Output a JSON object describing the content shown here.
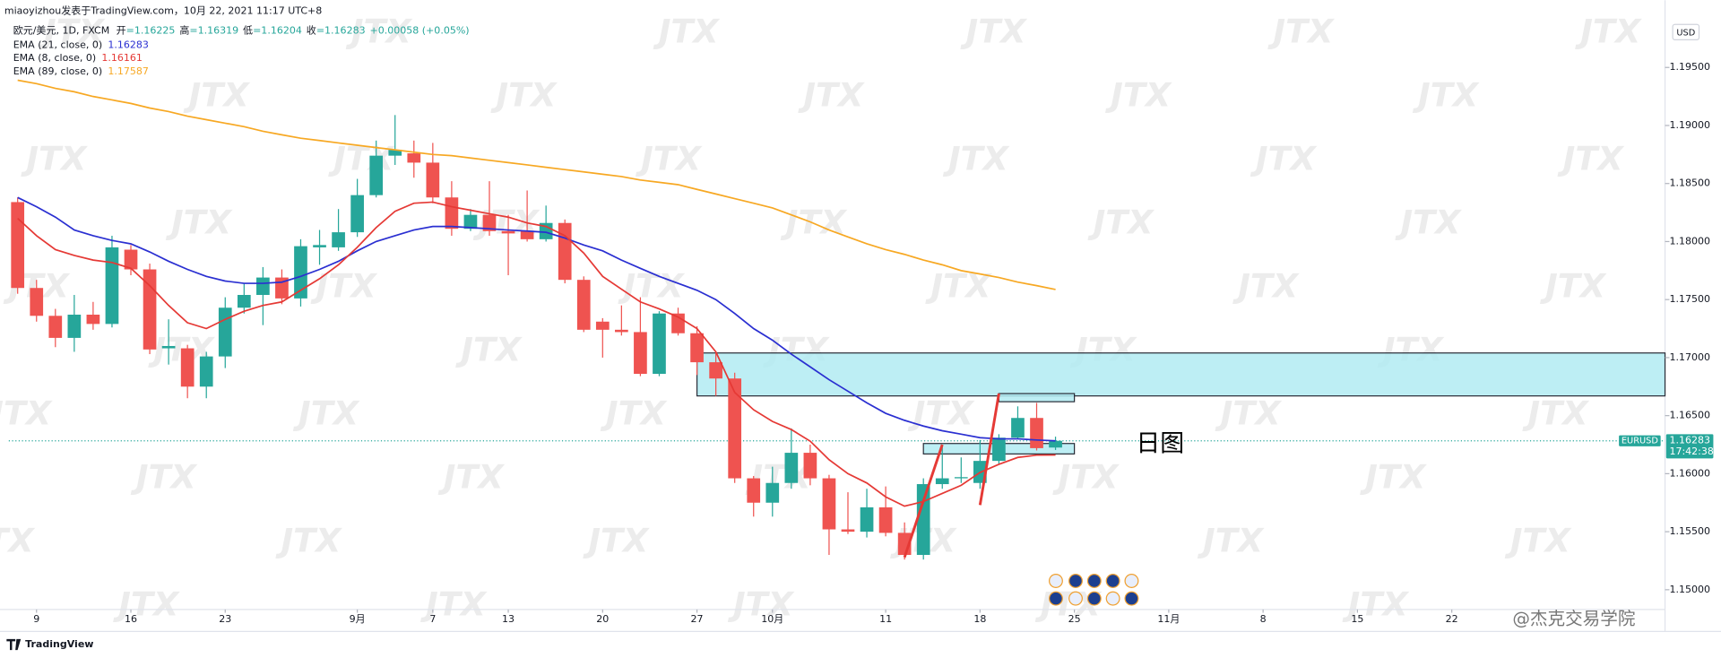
{
  "chart_data": {
    "type": "candlestick",
    "published": "miaoyizhou发表于TradingView.com，10月 22, 2021 11:17 UTC+8",
    "symbol": "欧元/美元, 1D, FXCM",
    "ohlc_header": [
      {
        "label": "开",
        "value": "=1.16225"
      },
      {
        "label": "高",
        "value": "=1.16319"
      },
      {
        "label": "低",
        "value": "=1.16204"
      },
      {
        "label": "收",
        "value": "=1.16283"
      }
    ],
    "change": "+0.00058 (+0.05%)",
    "currency": "USD",
    "ticker": "EURUSD",
    "last_price": 1.16283,
    "last_price_label": "1.16283",
    "countdown": "17:42:38",
    "annotation": "日图",
    "watermark": "JTX",
    "footer_brand": "TradingView",
    "footer_watermark": "@杰克交易学院",
    "up_color": "#26a69a",
    "down_color": "#ef5350",
    "x": [
      0,
      1,
      2,
      3,
      4,
      5,
      6,
      7,
      8,
      9,
      10,
      11,
      12,
      13,
      14,
      15,
      16,
      17,
      18,
      19,
      20,
      21,
      22,
      23,
      24,
      25,
      26,
      27,
      28,
      29,
      30,
      31,
      32,
      33,
      34,
      35,
      36,
      37,
      38,
      39,
      40,
      41,
      42,
      43,
      44,
      45,
      46,
      47,
      48,
      49,
      50,
      51,
      52,
      53,
      54,
      55
    ],
    "open": [
      1.1834,
      1.176,
      1.1736,
      1.1717,
      1.1737,
      1.1729,
      1.1793,
      1.1776,
      1.1708,
      1.1708,
      1.1675,
      1.1701,
      1.1743,
      1.1754,
      1.1769,
      1.1751,
      1.1795,
      1.1795,
      1.1808,
      1.184,
      1.1874,
      1.1876,
      1.1868,
      1.1838,
      1.1811,
      1.1823,
      1.1809,
      1.1809,
      1.1802,
      1.1816,
      1.1767,
      1.1731,
      1.1724,
      1.1722,
      1.1686,
      1.1738,
      1.1721,
      1.1696,
      1.1682,
      1.1596,
      1.1575,
      1.1592,
      1.1618,
      1.1596,
      1.1552,
      1.155,
      1.1571,
      1.1549,
      1.153,
      1.1591,
      1.1596,
      1.1592,
      1.1611,
      1.1631,
      1.1648,
      1.16225
    ],
    "high": [
      1.1838,
      1.1767,
      1.1742,
      1.1754,
      1.1748,
      1.1805,
      1.1797,
      1.1781,
      1.1733,
      1.1711,
      1.1705,
      1.1752,
      1.1764,
      1.1778,
      1.1776,
      1.1802,
      1.181,
      1.1828,
      1.1854,
      1.1887,
      1.1909,
      1.1887,
      1.1885,
      1.1852,
      1.1828,
      1.1852,
      1.1823,
      1.1844,
      1.1831,
      1.1819,
      1.177,
      1.1734,
      1.1745,
      1.1752,
      1.174,
      1.1743,
      1.1727,
      1.1705,
      1.1687,
      1.1598,
      1.1606,
      1.1639,
      1.1625,
      1.1599,
      1.1584,
      1.1587,
      1.1589,
      1.1558,
      1.1596,
      1.1625,
      1.1614,
      1.1629,
      1.1634,
      1.1658,
      1.1661,
      1.16319
    ],
    "low": [
      1.1755,
      1.1731,
      1.1709,
      1.1705,
      1.1724,
      1.1726,
      1.1771,
      1.1703,
      1.1694,
      1.1665,
      1.1665,
      1.1691,
      1.1738,
      1.1728,
      1.1746,
      1.1744,
      1.178,
      1.1792,
      1.1804,
      1.1838,
      1.1866,
      1.1855,
      1.1833,
      1.1805,
      1.1809,
      1.1805,
      1.1771,
      1.18,
      1.18,
      1.1764,
      1.1722,
      1.17,
      1.1719,
      1.1684,
      1.1684,
      1.1719,
      1.1685,
      1.1667,
      1.1592,
      1.1563,
      1.1563,
      1.1587,
      1.159,
      1.153,
      1.1548,
      1.1545,
      1.1546,
      1.1526,
      1.1526,
      1.1587,
      1.1592,
      1.1587,
      1.1608,
      1.163,
      1.162,
      1.16204
    ],
    "close": [
      1.176,
      1.1736,
      1.1717,
      1.1737,
      1.1729,
      1.1795,
      1.1776,
      1.1707,
      1.171,
      1.1675,
      1.1701,
      1.1743,
      1.1754,
      1.1769,
      1.1751,
      1.1796,
      1.1797,
      1.1808,
      1.184,
      1.1874,
      1.1879,
      1.1868,
      1.1838,
      1.1811,
      1.1823,
      1.1809,
      1.1807,
      1.1802,
      1.1816,
      1.1767,
      1.1724,
      1.1724,
      1.1722,
      1.1686,
      1.1738,
      1.1721,
      1.1696,
      1.1682,
      1.1596,
      1.1575,
      1.1592,
      1.1618,
      1.1596,
      1.1552,
      1.155,
      1.1571,
      1.1549,
      1.153,
      1.1591,
      1.1596,
      1.1597,
      1.1611,
      1.1631,
      1.1648,
      1.1622,
      1.16283
    ],
    "series": [
      {
        "name": "EMA (21, close, 0)",
        "value_label": "1.16283",
        "color": "#2a2fd1",
        "values": [
          1.1838,
          1.183,
          1.1821,
          1.181,
          1.1805,
          1.1801,
          1.1798,
          1.1791,
          1.1783,
          1.1776,
          1.177,
          1.1766,
          1.1764,
          1.1764,
          1.1765,
          1.177,
          1.1776,
          1.1783,
          1.1792,
          1.18,
          1.1805,
          1.181,
          1.1813,
          1.1813,
          1.1812,
          1.1811,
          1.181,
          1.1809,
          1.1808,
          1.1803,
          1.1797,
          1.1792,
          1.1784,
          1.1777,
          1.177,
          1.1764,
          1.1758,
          1.175,
          1.1738,
          1.1725,
          1.1715,
          1.1703,
          1.1692,
          1.1681,
          1.1671,
          1.1661,
          1.1652,
          1.1646,
          1.1641,
          1.1637,
          1.1634,
          1.1631,
          1.163,
          1.163,
          1.1629,
          1.16283
        ]
      },
      {
        "name": "EMA (8, close, 0)",
        "value_label": "1.16161",
        "color": "#e53935",
        "values": [
          1.182,
          1.1805,
          1.1793,
          1.1788,
          1.1784,
          1.1782,
          1.1777,
          1.1762,
          1.1745,
          1.173,
          1.1725,
          1.1733,
          1.174,
          1.1745,
          1.1748,
          1.1758,
          1.1768,
          1.178,
          1.1795,
          1.1812,
          1.1826,
          1.1833,
          1.1834,
          1.183,
          1.1827,
          1.1824,
          1.1821,
          1.1816,
          1.1813,
          1.1805,
          1.179,
          1.177,
          1.1759,
          1.1748,
          1.1742,
          1.1735,
          1.1725,
          1.1705,
          1.167,
          1.1655,
          1.1645,
          1.1638,
          1.1628,
          1.1612,
          1.16,
          1.1592,
          1.158,
          1.1572,
          1.1576,
          1.1583,
          1.159,
          1.1601,
          1.1608,
          1.1614,
          1.1616,
          1.16161
        ]
      },
      {
        "name": "EMA (89, close, 0)",
        "value_label": "1.17587",
        "color": "#f7a823",
        "values": [
          1.1939,
          1.1936,
          1.1932,
          1.1929,
          1.1925,
          1.1922,
          1.1919,
          1.1915,
          1.1912,
          1.1908,
          1.1905,
          1.1902,
          1.1899,
          1.1895,
          1.1892,
          1.1889,
          1.1887,
          1.1885,
          1.1883,
          1.1881,
          1.1879,
          1.1877,
          1.1875,
          1.1874,
          1.1872,
          1.187,
          1.1868,
          1.1866,
          1.1864,
          1.1862,
          1.186,
          1.1858,
          1.1856,
          1.1853,
          1.1851,
          1.1849,
          1.1845,
          1.1841,
          1.1837,
          1.1833,
          1.1829,
          1.1823,
          1.1817,
          1.181,
          1.1804,
          1.1798,
          1.1793,
          1.1789,
          1.1784,
          1.178,
          1.1775,
          1.1772,
          1.1769,
          1.1765,
          1.1762,
          1.17587
        ]
      }
    ],
    "zones": [
      {
        "x": [
          36.0,
          87.3
        ],
        "y": [
          1.1667,
          1.1704
        ],
        "fill": "#b2ebf2"
      },
      {
        "x": [
          52.0,
          56.0
        ],
        "y": [
          1.1662,
          1.1669
        ],
        "fill": "#b2ebf2"
      },
      {
        "x": [
          48.0,
          56.0
        ],
        "y": [
          1.1617,
          1.1626
        ],
        "fill": "#b2ebf2"
      }
    ],
    "trend_lines": [
      {
        "x": [
          47,
          49
        ],
        "y": [
          1.1528,
          1.1625
        ],
        "color": "#e53935"
      },
      {
        "x": [
          51,
          52
        ],
        "y": [
          1.1573,
          1.1669
        ],
        "color": "#e53935"
      }
    ],
    "xlim": [
      -0.47,
      87.3
    ],
    "xticks": [
      {
        "value": 1,
        "label": "9"
      },
      {
        "value": 6,
        "label": "16"
      },
      {
        "value": 11,
        "label": "23"
      },
      {
        "value": 18,
        "label": "9月"
      },
      {
        "value": 22,
        "label": "7"
      },
      {
        "value": 26,
        "label": "13"
      },
      {
        "value": 31,
        "label": "20"
      },
      {
        "value": 36,
        "label": "27"
      },
      {
        "value": 40,
        "label": "10月"
      },
      {
        "value": 46,
        "label": "11"
      },
      {
        "value": 51,
        "label": "18"
      },
      {
        "value": 56,
        "label": "25"
      },
      {
        "value": 61,
        "label": "11月"
      },
      {
        "value": 66,
        "label": "8"
      },
      {
        "value": 71,
        "label": "15"
      },
      {
        "value": 76,
        "label": "22"
      }
    ],
    "ylim": [
      1.1483,
      1.1989
    ],
    "yticks": [
      {
        "value": 1.15,
        "label": "1.15000"
      },
      {
        "value": 1.155,
        "label": "1.15500"
      },
      {
        "value": 1.16,
        "label": "1.16000"
      },
      {
        "value": 1.165,
        "label": "1.16500"
      },
      {
        "value": 1.17,
        "label": "1.17000"
      },
      {
        "value": 1.175,
        "label": "1.17500"
      },
      {
        "value": 1.18,
        "label": "1.18000"
      },
      {
        "value": 1.185,
        "label": "1.18500"
      },
      {
        "value": 1.19,
        "label": "1.19000"
      },
      {
        "value": 1.195,
        "label": "1.19500"
      }
    ],
    "grid": false
  }
}
